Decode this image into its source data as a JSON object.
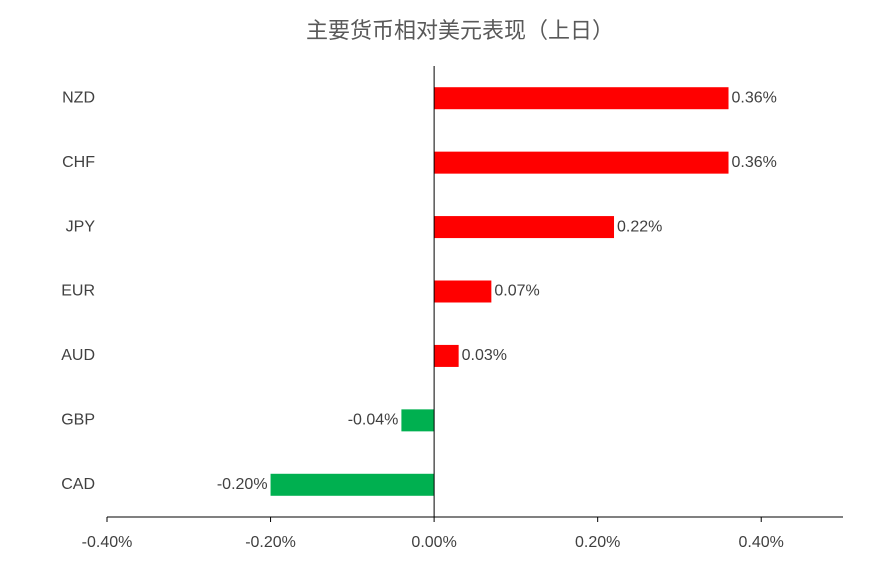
{
  "chart_data": {
    "type": "hbar",
    "title": "主要货币相对美元表现（上日）",
    "categories": [
      "NZD",
      "CHF",
      "JPY",
      "EUR",
      "AUD",
      "GBP",
      "CAD"
    ],
    "values": [
      0.36,
      0.36,
      0.22,
      0.07,
      0.03,
      -0.04,
      -0.2
    ],
    "value_labels": [
      "0.36%",
      "0.36%",
      "0.22%",
      "0.07%",
      "0.03%",
      "-0.04%",
      "-0.20%"
    ],
    "colors": [
      "#ff0000",
      "#ff0000",
      "#ff0000",
      "#ff0000",
      "#ff0000",
      "#00b050",
      "#00b050"
    ],
    "xlim": [
      -0.4,
      0.5
    ],
    "xticks": [
      {
        "value": -0.4,
        "label": "-0.40%"
      },
      {
        "value": -0.2,
        "label": "-0.20%"
      },
      {
        "value": 0,
        "label": "0.00%"
      },
      {
        "value": 0.2,
        "label": "0.20%"
      },
      {
        "value": 0.4,
        "label": "0.40%"
      }
    ]
  }
}
